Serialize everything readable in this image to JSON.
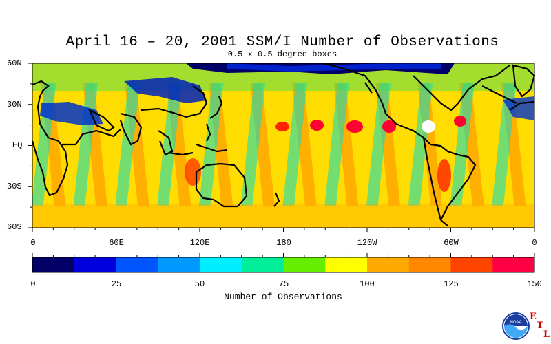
{
  "title": "April 16 – 20, 2001 SSM/I Number of Observations",
  "subtitle": "0.5 x 0.5 degree boxes",
  "lat_labels": [
    "60N",
    "30N",
    "EQ",
    "30S",
    "60S"
  ],
  "lon_labels": [
    "0",
    "60E",
    "120E",
    "180",
    "120W",
    "60W",
    "0"
  ],
  "colorbar": {
    "title": "Number of Observations",
    "tick_labels": [
      "0",
      "25",
      "50",
      "75",
      "100",
      "125",
      "150"
    ],
    "min": 0,
    "max": 150,
    "colors": [
      "#000066",
      "#0000dd",
      "#0055ff",
      "#0099ff",
      "#00eeff",
      "#00ee99",
      "#66ee00",
      "#ffff00",
      "#ffaa00",
      "#ff8800",
      "#ff4400",
      "#ff0044"
    ]
  },
  "logo": {
    "text": "NOAA",
    "icon": "noaa-logo-icon"
  },
  "etl_letters": [
    "E",
    "T",
    "L"
  ],
  "map_extent": {
    "lon_range": [
      0,
      360
    ],
    "lat_range": [
      -60,
      60
    ]
  }
}
